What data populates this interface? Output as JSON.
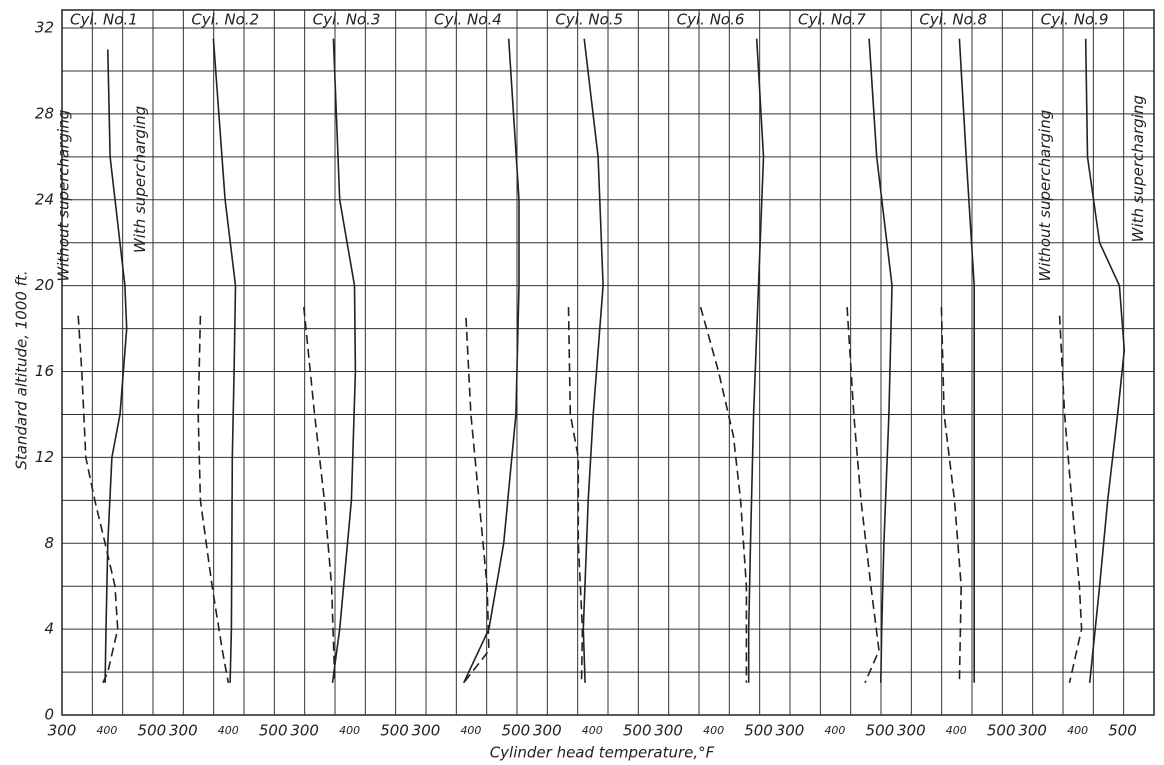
{
  "chart_data": {
    "type": "line",
    "xlabel": "Cylinder head temperature,°F",
    "ylabel": "Standard altitude, 1000 ft.",
    "xlim": [
      300,
      570
    ],
    "xticks": [
      300,
      400,
      500
    ],
    "ylim": [
      0,
      32
    ],
    "yticks": [
      0,
      4,
      8,
      12,
      16,
      20,
      24,
      28,
      32
    ],
    "ygrid": [
      0,
      2,
      4,
      6,
      8,
      10,
      12,
      14,
      16,
      18,
      20,
      22,
      24,
      26,
      28,
      30,
      32
    ],
    "xgrid_divisions": 4,
    "color": "#222",
    "panels": [
      {
        "title": "Cyl. No.1",
        "series": [
          {
            "name": "With supercharging",
            "style": "solid",
            "x": [
              402,
              407,
              440,
              444,
              429,
              411,
              402,
              398,
              396
            ],
            "values": [
              31,
              26,
              20,
              18,
              14,
              12,
              8,
              4,
              1.5
            ]
          },
          {
            "name": "Without supercharging",
            "style": "dashed",
            "x": [
              336,
              344,
              353,
              373,
              396,
              418,
              424,
              402,
              391
            ],
            "values": [
              18.6,
              16,
              12,
              10,
              8,
              6,
              4,
              2,
              1.5
            ]
          }
        ]
      },
      {
        "title": "Cyl. No.2",
        "series": [
          {
            "style": "solid",
            "x": [
              367,
              393,
              416,
              413,
              409,
              407,
              404
            ],
            "values": [
              31.5,
              24,
              20,
              16,
              12,
              4,
              1.5
            ]
          },
          {
            "style": "dashed",
            "x": [
              338,
              333,
              338,
              364,
              387,
              400
            ],
            "values": [
              18.6,
              14,
              10,
              6,
              3,
              1.5
            ]
          }
        ]
      },
      {
        "title": "Cyl. No.3",
        "series": [
          {
            "style": "solid",
            "x": [
              364,
              378,
              411,
              413,
              404,
              378,
              362
            ],
            "values": [
              31.5,
              24,
              20,
              16,
              10,
              4,
              1.5
            ]
          },
          {
            "style": "dashed",
            "x": [
              298,
              322,
              344,
              360,
              367
            ],
            "values": [
              19,
              14,
              10,
              6,
              1.5
            ]
          }
        ]
      },
      {
        "title": "Cyl. No.4",
        "series": [
          {
            "style": "solid",
            "x": [
              484,
              507,
              507,
              500,
              473,
              440,
              384
            ],
            "values": [
              31.5,
              24,
              20,
              14,
              8,
              4,
              1.5
            ]
          },
          {
            "style": "dashed",
            "x": [
              389,
              400,
              418,
              436,
              440,
              384
            ],
            "values": [
              18.5,
              14,
              10,
              6,
              3,
              1.5
            ]
          }
        ]
      },
      {
        "title": "Cyl. No.5",
        "series": [
          {
            "style": "solid",
            "x": [
              382,
              413,
              424,
              402,
              391,
              380,
              384
            ],
            "values": [
              31.5,
              26,
              20,
              14,
              10,
              4,
              1.5
            ]
          },
          {
            "style": "dashed",
            "x": [
              347,
              351,
              369,
              369,
              378,
              376
            ],
            "values": [
              19,
              14,
              12,
              8,
              4,
              1.5
            ]
          }
        ]
      },
      {
        "title": "Cyl. No.6",
        "series": [
          {
            "style": "solid",
            "x": [
              496,
              511,
              500,
              489,
              482,
              478,
              478
            ],
            "values": [
              31.5,
              26,
              20,
              14,
              8,
              4,
              1.5
            ]
          },
          {
            "style": "dashed",
            "x": [
              371,
              411,
              444,
              460,
              473,
              473
            ],
            "values": [
              19,
              16,
              13,
              10,
              6,
              1.5
            ]
          }
        ]
      },
      {
        "title": "Cyl. No.7",
        "series": [
          {
            "style": "solid",
            "x": [
              476,
              493,
              527,
              520,
              509,
              504,
              502
            ],
            "values": [
              31.5,
              26,
              20,
              14,
              8,
              4,
              1.5
            ]
          },
          {
            "style": "dashed",
            "x": [
              427,
              442,
              458,
              480,
              498,
              467
            ],
            "values": [
              19,
              14,
              10,
              6,
              3,
              1.5
            ]
          }
        ]
      },
      {
        "title": "Cyl. No.8",
        "series": [
          {
            "style": "solid",
            "x": [
              407,
              422,
              440,
              440,
              440,
              440
            ],
            "values": [
              31.5,
              26,
              20,
              14,
              8,
              1.5
            ]
          },
          {
            "style": "dashed",
            "x": [
              367,
              373,
              396,
              411,
              407
            ],
            "values": [
              19,
              14,
              10,
              6,
              1.5
            ]
          }
        ]
      },
      {
        "title": "Cyl. No.9",
        "series": [
          {
            "name": "With supercharging",
            "style": "solid",
            "x": [
              418,
              422,
              449,
              493,
              504,
              489,
              467,
              449,
              427
            ],
            "values": [
              31.5,
              26,
              22,
              20,
              17,
              14,
              10,
              6,
              1.5
            ]
          },
          {
            "name": "Without supercharging",
            "style": "dashed",
            "x": [
              360,
              371,
              387,
              404,
              409,
              382
            ],
            "values": [
              18.6,
              14,
              10,
              6,
              4,
              1.5
            ]
          }
        ]
      }
    ]
  }
}
